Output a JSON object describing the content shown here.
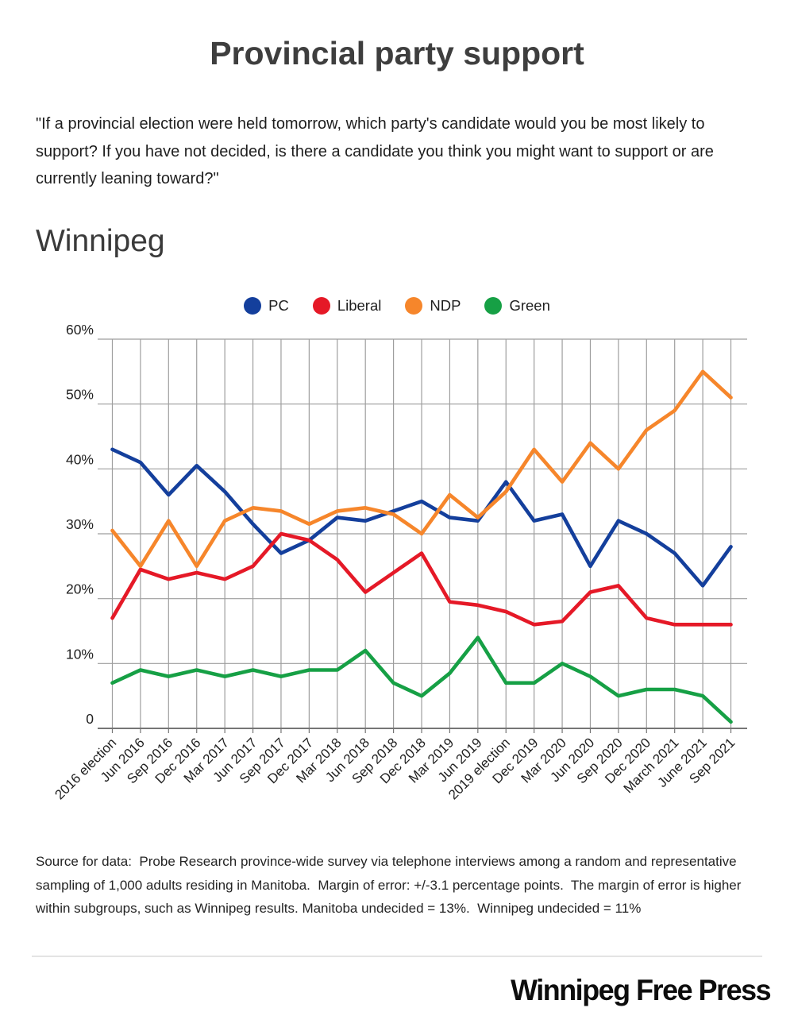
{
  "page": {
    "title": "Provincial party support",
    "question": "\"If a provincial election were held tomorrow, which party's candidate would you be most likely to support? If you have not decided, is there a candidate you think you might want to support or are currently leaning toward?\"",
    "section_heading": "Winnipeg",
    "source_note": "Source for data:  Probe Research province-wide survey via telephone interviews among a random and representative sampling of 1,000 adults residing in Manitoba.  Margin of error: +/-3.1 percentage points.  The margin of error is higher within subgroups, such as Winnipeg results. Manitoba undecided = 13%.  Winnipeg undecided = 11%",
    "publisher": "Winnipeg Free Press"
  },
  "colors": {
    "pc": "#143f9c",
    "liberal": "#e51927",
    "ndp": "#f6862b",
    "green": "#16a045",
    "grid": "#9e9e9e",
    "axis": "#757575",
    "tick_text": "#212121"
  },
  "chart_data": {
    "type": "line",
    "title": "Winnipeg",
    "categories": [
      "2016 election",
      "Jun 2016",
      "Sep 2016",
      "Dec 2016",
      "Mar 2017",
      "Jun 2017",
      "Sep 2017",
      "Dec 2017",
      "Mar 2018",
      "Jun 2018",
      "Sep 2018",
      "Dec 2018",
      "Mar 2019",
      "Jun 2019",
      "2019 election",
      "Dec 2019",
      "Mar 2020",
      "Jun 2020",
      "Sep 2020",
      "Dec 2020",
      "March 2021",
      "June 2021",
      "Sep 2021"
    ],
    "series": [
      {
        "name": "PC",
        "color_key": "pc",
        "values": [
          43,
          41,
          36,
          40.5,
          36.5,
          31.5,
          27,
          29,
          32.5,
          32,
          33.5,
          35,
          32.5,
          32,
          38,
          32,
          33,
          25,
          32,
          30,
          27,
          22,
          28
        ]
      },
      {
        "name": "Liberal",
        "color_key": "liberal",
        "values": [
          17,
          24.5,
          23,
          24,
          23,
          25,
          30,
          29,
          26,
          21,
          24,
          27,
          19.5,
          19,
          18,
          16,
          16.5,
          21,
          22,
          17,
          16,
          16,
          16
        ]
      },
      {
        "name": "NDP",
        "color_key": "ndp",
        "values": [
          30.5,
          25,
          32,
          25,
          32,
          34,
          33.5,
          31.5,
          33.5,
          34,
          33,
          30,
          36,
          32.5,
          36.5,
          43,
          38,
          44,
          40,
          46,
          49,
          55,
          51
        ]
      },
      {
        "name": "Green",
        "color_key": "green",
        "values": [
          7,
          9,
          8,
          9,
          8,
          9,
          8,
          9,
          9,
          12,
          7,
          5,
          8.5,
          14,
          7,
          7,
          10,
          8,
          5,
          6,
          6,
          5,
          1
        ]
      }
    ],
    "ylim": [
      0,
      60
    ],
    "ytick_step": 10,
    "ytick_labels": [
      "60%",
      "50%",
      "40%",
      "30%",
      "20%",
      "10%",
      "0"
    ],
    "grid": true,
    "legend_position": "top",
    "legend_entries": [
      "PC",
      "Liberal",
      "NDP",
      "Green"
    ]
  }
}
